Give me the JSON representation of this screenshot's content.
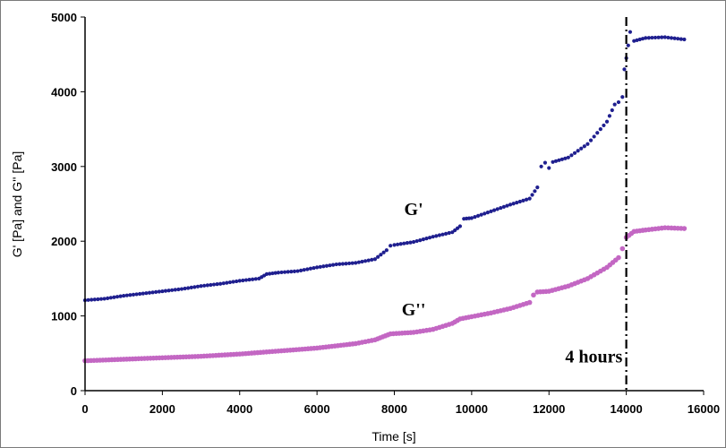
{
  "chart_data": {
    "type": "scatter",
    "title": "",
    "xlabel": "Time [s]",
    "ylabel": "G' [Pa] and G'' [Pa]",
    "xlim": [
      0,
      16000
    ],
    "ylim": [
      0,
      5000
    ],
    "x_ticks": [
      "0",
      "2000",
      "4000",
      "6000",
      "8000",
      "10000",
      "12000",
      "14000",
      "16000"
    ],
    "y_ticks": [
      "0",
      "1000",
      "2000",
      "3000",
      "4000",
      "5000"
    ],
    "grid": false,
    "series": [
      {
        "name": "G'",
        "color": "#1f1f8f",
        "points": [
          [
            0,
            1210
          ],
          [
            500,
            1230
          ],
          [
            1000,
            1270
          ],
          [
            1500,
            1300
          ],
          [
            2000,
            1330
          ],
          [
            2500,
            1360
          ],
          [
            3000,
            1400
          ],
          [
            3500,
            1430
          ],
          [
            4000,
            1470
          ],
          [
            4500,
            1500
          ],
          [
            4700,
            1560
          ],
          [
            5000,
            1580
          ],
          [
            5500,
            1600
          ],
          [
            6000,
            1650
          ],
          [
            6500,
            1690
          ],
          [
            7000,
            1710
          ],
          [
            7500,
            1760
          ],
          [
            7800,
            1880
          ],
          [
            7900,
            1940
          ],
          [
            8000,
            1950
          ],
          [
            8500,
            1990
          ],
          [
            9000,
            2060
          ],
          [
            9500,
            2120
          ],
          [
            9700,
            2200
          ],
          [
            9800,
            2300
          ],
          [
            10000,
            2310
          ],
          [
            10500,
            2400
          ],
          [
            11000,
            2490
          ],
          [
            11500,
            2570
          ],
          [
            11700,
            2720
          ],
          [
            11800,
            3000
          ],
          [
            11900,
            3050
          ],
          [
            12000,
            2980
          ],
          [
            12100,
            3060
          ],
          [
            12500,
            3120
          ],
          [
            13000,
            3300
          ],
          [
            13500,
            3600
          ],
          [
            13700,
            3830
          ],
          [
            13800,
            3860
          ],
          [
            13900,
            3930
          ],
          [
            13950,
            4300
          ],
          [
            14000,
            4450
          ],
          [
            14050,
            4620
          ],
          [
            14100,
            4800
          ],
          [
            14200,
            4680
          ],
          [
            14500,
            4720
          ],
          [
            15000,
            4730
          ],
          [
            15500,
            4700
          ]
        ]
      },
      {
        "name": "G''",
        "color": "#c367c3",
        "points": [
          [
            0,
            400
          ],
          [
            1000,
            420
          ],
          [
            2000,
            440
          ],
          [
            3000,
            460
          ],
          [
            4000,
            490
          ],
          [
            5000,
            530
          ],
          [
            6000,
            570
          ],
          [
            7000,
            630
          ],
          [
            7500,
            680
          ],
          [
            7700,
            720
          ],
          [
            7900,
            760
          ],
          [
            8500,
            780
          ],
          [
            9000,
            820
          ],
          [
            9500,
            900
          ],
          [
            9700,
            960
          ],
          [
            10000,
            990
          ],
          [
            10500,
            1040
          ],
          [
            11000,
            1100
          ],
          [
            11500,
            1180
          ],
          [
            11600,
            1280
          ],
          [
            11700,
            1320
          ],
          [
            12000,
            1330
          ],
          [
            12500,
            1400
          ],
          [
            13000,
            1500
          ],
          [
            13500,
            1650
          ],
          [
            13800,
            1780
          ],
          [
            13900,
            1900
          ],
          [
            14000,
            2050
          ],
          [
            14200,
            2130
          ],
          [
            14500,
            2150
          ],
          [
            15000,
            2180
          ],
          [
            15500,
            2170
          ]
        ]
      }
    ],
    "annotations": [
      {
        "text": "G'",
        "x": 8500,
        "y": 2350
      },
      {
        "text": "G''",
        "x": 8500,
        "y": 1010
      },
      {
        "text": "4 hours",
        "x": 13900,
        "y": 380
      }
    ],
    "vertical_line": {
      "x": 14000,
      "style": "dash-dot"
    }
  }
}
